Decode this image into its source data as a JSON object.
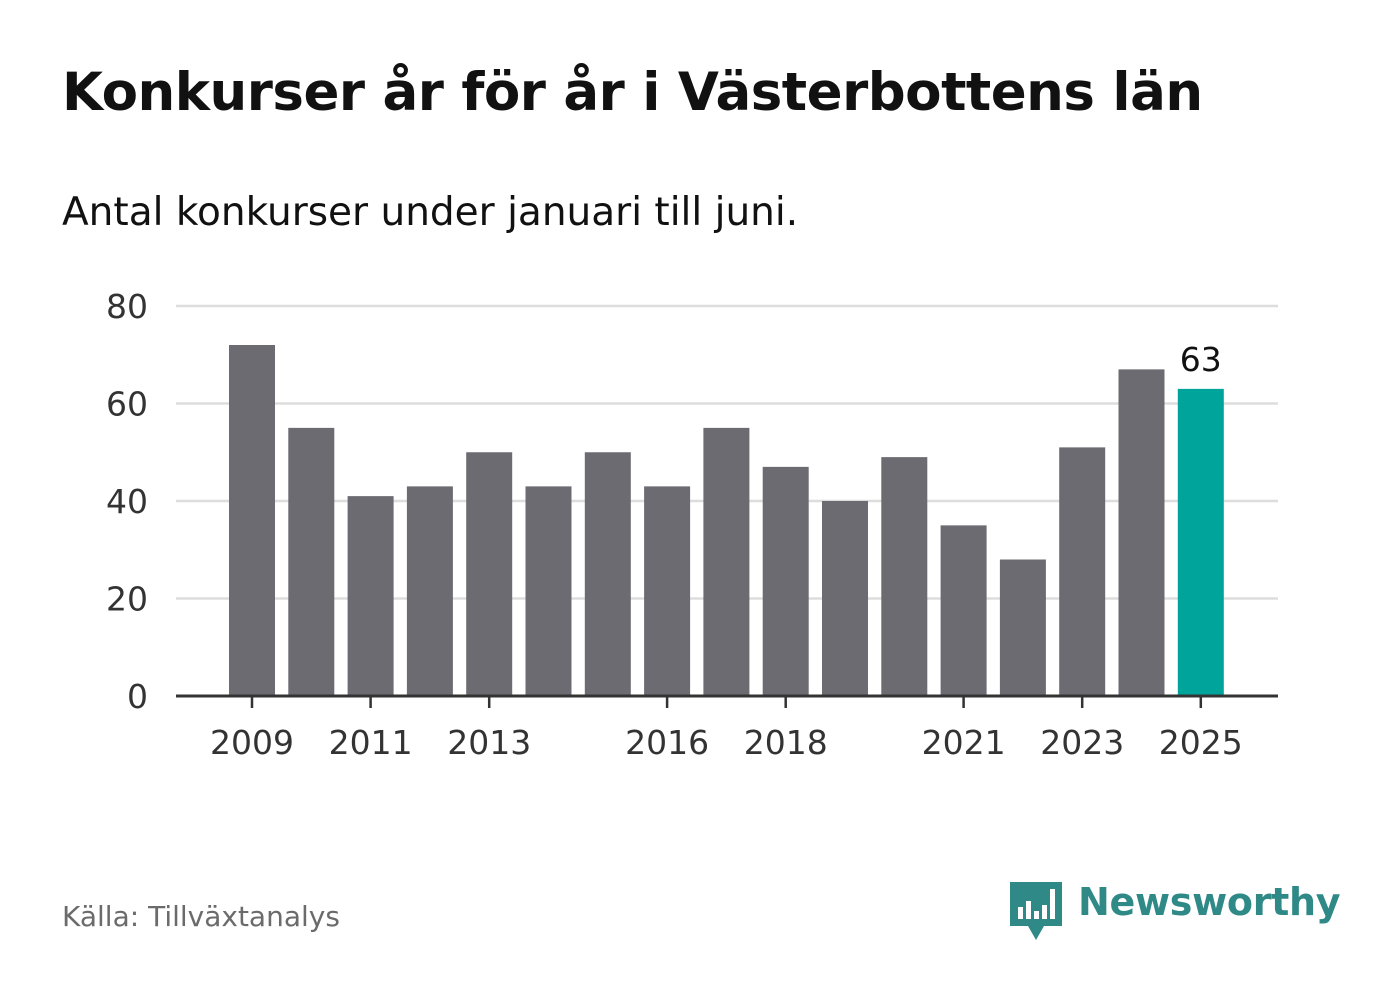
{
  "header": {
    "title": "Konkurser år för år i Västerbottens län",
    "subtitle": "Antal konkurser under januari till juni."
  },
  "footer": {
    "source": "Källa: Tillväxtanalys",
    "brand_name": "Newsworthy",
    "brand_icon": "bar-chart-speech-bubble-icon"
  },
  "colors": {
    "bar": "#6c6b72",
    "highlight": "#00a49a",
    "grid": "#dddddd",
    "axis": "#333333",
    "brand": "#2f8a87"
  },
  "chart_data": {
    "type": "bar",
    "title": "",
    "xlabel": "",
    "ylabel": "",
    "ylim": [
      0,
      80
    ],
    "y_ticks": [
      0,
      20,
      40,
      60,
      80
    ],
    "grid": true,
    "categories": [
      "2009",
      "2010",
      "2011",
      "2012",
      "2013",
      "2014",
      "2015",
      "2016",
      "2017",
      "2018",
      "2019",
      "2020",
      "2021",
      "2022",
      "2023",
      "2024",
      "2025"
    ],
    "x_tick_labels": [
      "2009",
      "2011",
      "2013",
      "2016",
      "2018",
      "2021",
      "2023",
      "2025"
    ],
    "values": [
      72,
      55,
      41,
      43,
      50,
      43,
      50,
      43,
      55,
      47,
      40,
      49,
      35,
      28,
      51,
      67,
      63
    ],
    "highlight": {
      "category": "2025",
      "label": "63"
    }
  }
}
